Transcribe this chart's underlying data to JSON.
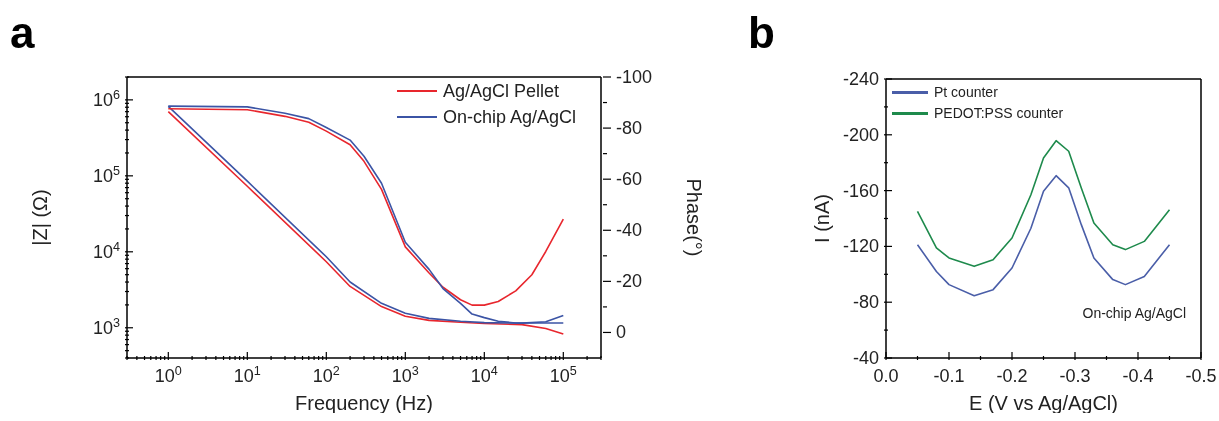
{
  "chart_data": [
    {
      "type": "line",
      "xlabel": "Frequency (Hz)",
      "ylabel": "|Z| (Ω)",
      "y2label": "Phase(°)",
      "annotations": [
        "a"
      ],
      "log": "xy",
      "grid": false,
      "legend": "top right",
      "marker": "none",
      "line_style": "solid",
      "xlim": [
        0.3,
        300000
      ],
      "ylim": [
        400,
        2000000
      ],
      "y2lim": [
        10,
        -100
      ],
      "xticks": [
        {
          "value": 0.3,
          "label": null
        },
        {
          "value": 0.4,
          "label": null
        },
        {
          "value": 0.5,
          "label": null
        },
        {
          "value": 0.6,
          "label": null
        },
        {
          "value": 0.7,
          "label": null
        },
        {
          "value": 0.8,
          "label": null
        },
        {
          "value": 0.9,
          "label": null
        },
        {
          "value": 1,
          "label": "10$^{0}$"
        },
        {
          "value": 2,
          "label": null
        },
        {
          "value": 3,
          "label": null
        },
        {
          "value": 4,
          "label": null
        },
        {
          "value": 5,
          "label": null
        },
        {
          "value": 6,
          "label": null
        },
        {
          "value": 7,
          "label": null
        },
        {
          "value": 8,
          "label": null
        },
        {
          "value": 9,
          "label": null
        },
        {
          "value": 10,
          "label": "10$^{1}$"
        },
        {
          "value": 20,
          "label": null
        },
        {
          "value": 30,
          "label": null
        },
        {
          "value": 40,
          "label": null
        },
        {
          "value": 50,
          "label": null
        },
        {
          "value": 60,
          "label": null
        },
        {
          "value": 70,
          "label": null
        },
        {
          "value": 80,
          "label": null
        },
        {
          "value": 90,
          "label": null
        },
        {
          "value": 100,
          "label": "10$^{2}$"
        },
        {
          "value": 200,
          "label": null
        },
        {
          "value": 300,
          "label": null
        },
        {
          "value": 400,
          "label": null
        },
        {
          "value": 500,
          "label": null
        },
        {
          "value": 600,
          "label": null
        },
        {
          "value": 700,
          "label": null
        },
        {
          "value": 800,
          "label": null
        },
        {
          "value": 900,
          "label": null
        },
        {
          "value": 1000,
          "label": "10$^{3}$"
        },
        {
          "value": 2000,
          "label": null
        },
        {
          "value": 3000,
          "label": null
        },
        {
          "value": 4000,
          "label": null
        },
        {
          "value": 5000,
          "label": null
        },
        {
          "value": 6000,
          "label": null
        },
        {
          "value": 7000,
          "label": null
        },
        {
          "value": 8000,
          "label": null
        },
        {
          "value": 9000,
          "label": null
        },
        {
          "value": 10000,
          "label": "10$^{4}$"
        },
        {
          "value": 20000,
          "label": null
        },
        {
          "value": 30000,
          "label": null
        },
        {
          "value": 40000,
          "label": null
        },
        {
          "value": 50000,
          "label": null
        },
        {
          "value": 60000,
          "label": null
        },
        {
          "value": 70000,
          "label": null
        },
        {
          "value": 80000,
          "label": null
        },
        {
          "value": 90000,
          "label": null
        },
        {
          "value": 100000,
          "label": "10$^{5}$"
        },
        {
          "value": 200000,
          "label": null
        },
        {
          "value": 300000,
          "label": null
        }
      ],
      "yticks": [
        {
          "value": 400,
          "label": null
        },
        {
          "value": 500,
          "label": null
        },
        {
          "value": 600,
          "label": null
        },
        {
          "value": 700,
          "label": null
        },
        {
          "value": 800,
          "label": null
        },
        {
          "value": 900,
          "label": null
        },
        {
          "value": 1000,
          "label": "10$^{3}$"
        },
        {
          "value": 2000,
          "label": null
        },
        {
          "value": 3000,
          "label": null
        },
        {
          "value": 4000,
          "label": null
        },
        {
          "value": 5000,
          "label": null
        },
        {
          "value": 6000,
          "label": null
        },
        {
          "value": 7000,
          "label": null
        },
        {
          "value": 8000,
          "label": null
        },
        {
          "value": 9000,
          "label": null
        },
        {
          "value": 10000,
          "label": "10$^{4}$"
        },
        {
          "value": 20000,
          "label": null
        },
        {
          "value": 30000,
          "label": null
        },
        {
          "value": 40000,
          "label": null
        },
        {
          "value": 50000,
          "label": null
        },
        {
          "value": 60000,
          "label": null
        },
        {
          "value": 70000,
          "label": null
        },
        {
          "value": 80000,
          "label": null
        },
        {
          "value": 90000,
          "label": null
        },
        {
          "value": 100000,
          "label": "10$^{5}$"
        },
        {
          "value": 200000,
          "label": null
        },
        {
          "value": 300000,
          "label": null
        },
        {
          "value": 400000,
          "label": null
        },
        {
          "value": 500000,
          "label": null
        },
        {
          "value": 600000,
          "label": null
        },
        {
          "value": 700000,
          "label": null
        },
        {
          "value": 800000,
          "label": null
        },
        {
          "value": 900000,
          "label": null
        },
        {
          "value": 1000000,
          "label": "10$^{6}$"
        },
        {
          "value": 2000000,
          "label": null
        }
      ],
      "y2ticks": [
        -100,
        {
          "value": -90,
          "label": null
        },
        -80,
        {
          "value": -70,
          "label": null
        },
        -60,
        {
          "value": -50,
          "label": null
        },
        -40,
        {
          "value": -30,
          "label": null
        },
        -20,
        {
          "value": -10,
          "label": null
        },
        0
      ],
      "series": [
        {
          "name": "Ag/AgCl Pellet",
          "color": "#e8262d",
          "x": [
            1,
            10,
            100,
            200,
            500,
            1000,
            2000,
            5000,
            10000,
            30000,
            60000,
            100000
          ],
          "values": [
            700000,
            73000,
            7400,
            3500,
            1900,
            1420,
            1250,
            1180,
            1140,
            1100,
            980,
            830
          ]
        },
        {
          "name": "On-chip Ag/AgCl",
          "color": "#3b54a5",
          "x": [
            1,
            10,
            100,
            200,
            500,
            1000,
            2000,
            5000,
            10000,
            30000,
            60000,
            100000
          ],
          "values": [
            820000,
            85000,
            8600,
            4000,
            2100,
            1550,
            1330,
            1220,
            1170,
            1150,
            1200,
            1450
          ]
        },
        {
          "color": "#e8262d",
          "axis": "y2",
          "x": [
            1,
            10,
            30,
            60,
            100,
            200,
            300,
            500,
            1000,
            2000,
            3000,
            5000,
            7000,
            10000,
            15000,
            25000,
            40000,
            60000,
            100000
          ],
          "values": [
            -87.6,
            -87.2,
            -84.6,
            -82.3,
            -78.8,
            -73.5,
            -67,
            -56,
            -33.5,
            -23.3,
            -17.7,
            -12.8,
            -10.7,
            -10.7,
            -12.1,
            -16.3,
            -22.6,
            -31.7,
            -44.4
          ]
        },
        {
          "color": "#3b54a5",
          "axis": "y2",
          "x": [
            1,
            10,
            30,
            60,
            100,
            200,
            300,
            500,
            1000,
            2000,
            3000,
            5000,
            7000,
            10000,
            15000,
            25000,
            100000
          ],
          "values": [
            -88.6,
            -88.3,
            -85.8,
            -83.7,
            -80.2,
            -75.3,
            -69,
            -58.4,
            -35.3,
            -24.7,
            -17.2,
            -11.4,
            -7.2,
            -5.8,
            -4.4,
            -3.7,
            -3.7
          ]
        }
      ]
    },
    {
      "type": "line",
      "xlabel": "E (V vs Ag/AgCl)",
      "ylabel": "I (nA)",
      "annotations": [
        "b",
        "On-chip Ag/AgCl"
      ],
      "grid": false,
      "legend": "top left",
      "marker": "none",
      "line_style": "solid",
      "xlim": [
        0,
        -0.5
      ],
      "ylim": [
        -40,
        -240
      ],
      "xticks": [
        {
          "value": 0,
          "label": "0.0"
        },
        {
          "value": -0.05,
          "label": null
        },
        -0.1,
        {
          "value": -0.15,
          "label": null
        },
        -0.2,
        {
          "value": -0.25,
          "label": null
        },
        -0.3,
        {
          "value": -0.35,
          "label": null
        },
        -0.4,
        {
          "value": -0.45,
          "label": null
        },
        -0.5
      ],
      "yticks": [
        -40,
        {
          "value": -60,
          "label": null
        },
        -80,
        {
          "value": -100,
          "label": null
        },
        -120,
        {
          "value": -140,
          "label": null
        },
        -160,
        {
          "value": -180,
          "label": null
        },
        -200,
        {
          "value": -220,
          "label": null
        },
        -240
      ],
      "series": [
        {
          "name": "Pt counter",
          "color": "#4a5ea8",
          "x": [
            -0.05,
            -0.08,
            -0.1,
            -0.14,
            -0.17,
            -0.2,
            -0.23,
            -0.25,
            -0.27,
            -0.29,
            -0.31,
            -0.33,
            -0.36,
            -0.38,
            -0.41,
            -0.45
          ],
          "values": [
            -121.2,
            -102,
            -92.6,
            -84.7,
            -89,
            -104.5,
            -133,
            -159.5,
            -170.7,
            -162,
            -135.6,
            -111.7,
            -96.2,
            -92.6,
            -98.5,
            -121.2
          ]
        },
        {
          "name": "PEDOT:PSS counter",
          "color": "#1e8a4c",
          "x": [
            -0.05,
            -0.08,
            -0.1,
            -0.14,
            -0.17,
            -0.2,
            -0.23,
            -0.25,
            -0.27,
            -0.29,
            -0.31,
            -0.33,
            -0.36,
            -0.38,
            -0.41,
            -0.45
          ],
          "values": [
            -145.1,
            -118.9,
            -111.7,
            -105.7,
            -110.5,
            -126,
            -157,
            -183.4,
            -195.8,
            -188.2,
            -161.9,
            -136.8,
            -121.2,
            -117.7,
            -123.6,
            -146.3
          ]
        }
      ]
    }
  ]
}
